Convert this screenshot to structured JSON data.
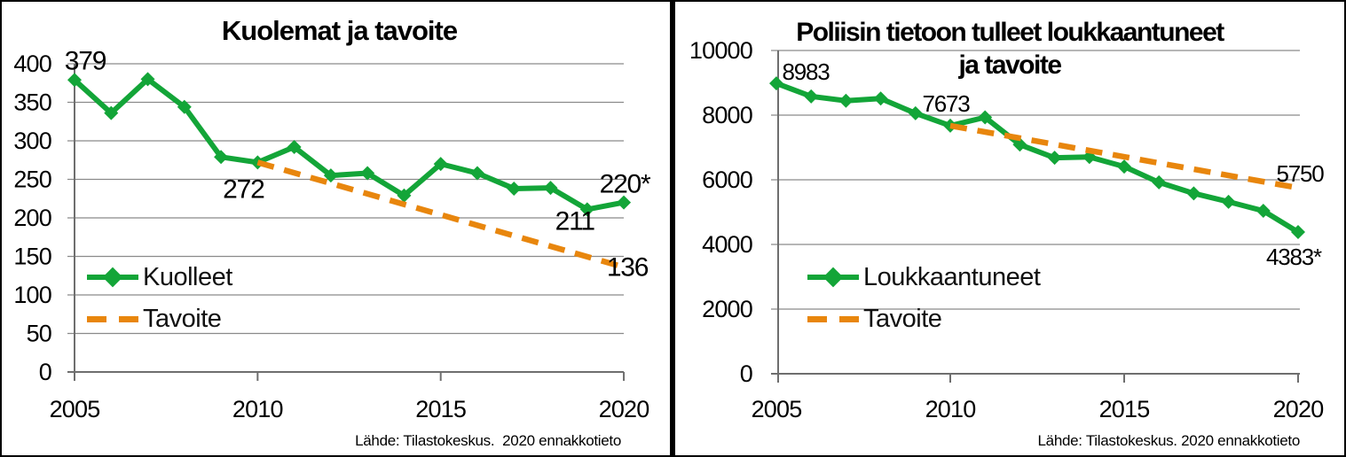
{
  "colors": {
    "series_green": "#13a538",
    "target_orange": "#e8860d",
    "gridline": "#8a8a8a",
    "axis": "#6e6e6e",
    "text": "#000000",
    "border": "#000000",
    "background": "#ffffff"
  },
  "chart_data": [
    {
      "id": "deaths",
      "type": "line",
      "title": "Kuolemat ja tavoite",
      "title_lines": [
        "Kuolemat ja tavoite"
      ],
      "xlabel": "",
      "ylabel": "",
      "xlim": [
        2005,
        2020
      ],
      "ylim": [
        0,
        400
      ],
      "x_ticks": [
        2005,
        2010,
        2015,
        2020
      ],
      "y_ticks": [
        0,
        50,
        100,
        150,
        200,
        250,
        300,
        350,
        400
      ],
      "grid": true,
      "legend_position": "lower-left-inside",
      "categories": [
        2005,
        2006,
        2007,
        2008,
        2009,
        2010,
        2011,
        2012,
        2013,
        2014,
        2015,
        2016,
        2017,
        2018,
        2019,
        2020
      ],
      "series": [
        {
          "name": "Kuolleet",
          "style": "solid-diamond",
          "color_key": "series_green",
          "x": [
            2005,
            2006,
            2007,
            2008,
            2009,
            2010,
            2011,
            2012,
            2013,
            2014,
            2015,
            2016,
            2017,
            2018,
            2019,
            2020
          ],
          "values": [
            379,
            336,
            380,
            344,
            279,
            272,
            292,
            255,
            258,
            229,
            270,
            258,
            238,
            239,
            211,
            220
          ]
        },
        {
          "name": "Tavoite",
          "style": "dashed",
          "color_key": "target_orange",
          "x": [
            2010,
            2020
          ],
          "values": [
            272,
            136
          ]
        }
      ],
      "legend": [
        {
          "label": "Kuolleet",
          "style": "solid-diamond"
        },
        {
          "label": "Tavoite",
          "style": "dashed"
        }
      ],
      "annotations": [
        {
          "text": "379",
          "year": 2005,
          "value": 379
        },
        {
          "text": "272",
          "year": 2010,
          "value": 272
        },
        {
          "text": "211",
          "year": 2019,
          "value": 211
        },
        {
          "text": "220*",
          "year": 2020,
          "value": 220
        },
        {
          "text": "136",
          "year": 2020,
          "value": 136
        }
      ],
      "source": "Lähde: Tilastokeskus.  2020 ennakkotieto"
    },
    {
      "id": "injuries",
      "type": "line",
      "title": "Poliisin tietoon tulleet loukkaantuneet ja tavoite",
      "title_lines": [
        "Poliisin tietoon tulleet loukkaantuneet",
        "ja tavoite"
      ],
      "xlabel": "",
      "ylabel": "",
      "xlim": [
        2005,
        2020
      ],
      "ylim": [
        0,
        10000
      ],
      "x_ticks": [
        2005,
        2010,
        2015,
        2020
      ],
      "y_ticks": [
        0,
        2000,
        4000,
        6000,
        8000,
        10000
      ],
      "grid": true,
      "legend_position": "lower-left-inside",
      "categories": [
        2005,
        2006,
        2007,
        2008,
        2009,
        2010,
        2011,
        2012,
        2013,
        2014,
        2015,
        2016,
        2017,
        2018,
        2019,
        2020
      ],
      "series": [
        {
          "name": "Loukkaantuneet",
          "style": "solid-diamond",
          "color_key": "series_green",
          "x": [
            2005,
            2006,
            2007,
            2008,
            2009,
            2010,
            2011,
            2012,
            2013,
            2014,
            2015,
            2016,
            2017,
            2018,
            2019,
            2020
          ],
          "values": [
            8983,
            8580,
            8446,
            8513,
            8057,
            7673,
            7931,
            7088,
            6681,
            6705,
            6408,
            5920,
            5580,
            5320,
            5040,
            4383
          ]
        },
        {
          "name": "Tavoite",
          "style": "dashed",
          "color_key": "target_orange",
          "x": [
            2010,
            2020
          ],
          "values": [
            7673,
            5750
          ]
        }
      ],
      "legend": [
        {
          "label": "Loukkaantuneet",
          "style": "solid-diamond"
        },
        {
          "label": "Tavoite",
          "style": "dashed"
        }
      ],
      "annotations": [
        {
          "text": "8983",
          "year": 2005,
          "value": 8983
        },
        {
          "text": "7673",
          "year": 2010,
          "value": 7673
        },
        {
          "text": "5750",
          "year": 2020,
          "value": 5750
        },
        {
          "text": "4383*",
          "year": 2020,
          "value": 4383
        }
      ],
      "source": "Lähde: Tilastokeskus. 2020 ennakkotieto"
    }
  ]
}
